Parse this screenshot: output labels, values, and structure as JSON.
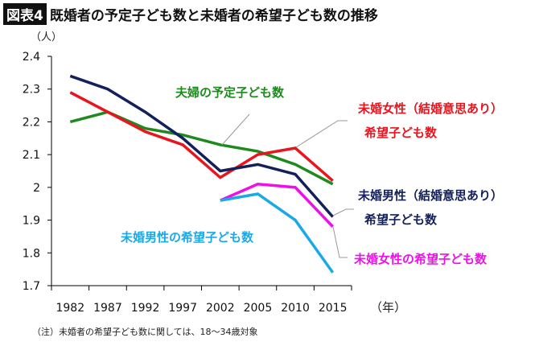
{
  "title_badge": "図表4",
  "title": "既婚者の予定子ども数と未婚者の希望子ども数の推移",
  "note": "（注）未婚者の希望子ども数に関しては、18〜34歳対象",
  "chart_data": {
    "type": "line",
    "ylabel": "（人）",
    "xlabel": "（年）",
    "ylim": [
      1.7,
      2.4
    ],
    "yticks": [
      "1.7",
      "1.8",
      "1.9",
      "2",
      "2.1",
      "2.2",
      "2.3",
      "2.4"
    ],
    "categories": [
      "1982",
      "1987",
      "1992",
      "1997",
      "2002",
      "2005",
      "2010",
      "2015"
    ],
    "grid": false,
    "series": [
      {
        "name": "夫婦の予定子ども数",
        "color": "#1e8a1e",
        "values": [
          2.2,
          2.23,
          2.18,
          2.16,
          2.13,
          2.11,
          2.07,
          2.01
        ]
      },
      {
        "name": "未婚女性（結婚意思あり）希望子ども数",
        "color": "#e8141e",
        "values": [
          2.29,
          2.23,
          2.17,
          2.13,
          2.03,
          2.1,
          2.12,
          2.02
        ]
      },
      {
        "name": "未婚男性（結婚意思あり）希望子ども数",
        "color": "#13205a",
        "values": [
          2.34,
          2.3,
          2.23,
          2.15,
          2.05,
          2.07,
          2.04,
          1.91
        ]
      },
      {
        "name": "未婚女性の希望子ども数",
        "color": "#ee10e6",
        "values": [
          null,
          null,
          null,
          null,
          1.96,
          2.01,
          2.0,
          1.88
        ]
      },
      {
        "name": "未婚男性の希望子ども数",
        "color": "#1aa9e6",
        "values": [
          null,
          null,
          null,
          null,
          1.96,
          1.98,
          1.9,
          1.74
        ]
      }
    ],
    "annotations": {
      "green": "夫婦の予定子ども数",
      "red1": "未婚女性（結婚意思あり）",
      "red2": "希望子ども数",
      "navy1": "未婚男性（結婚意思あり）",
      "navy2": "希望子ども数",
      "magenta": "未婚女性の希望子ども数",
      "cyan": "未婚男性の希望子ども数"
    }
  }
}
